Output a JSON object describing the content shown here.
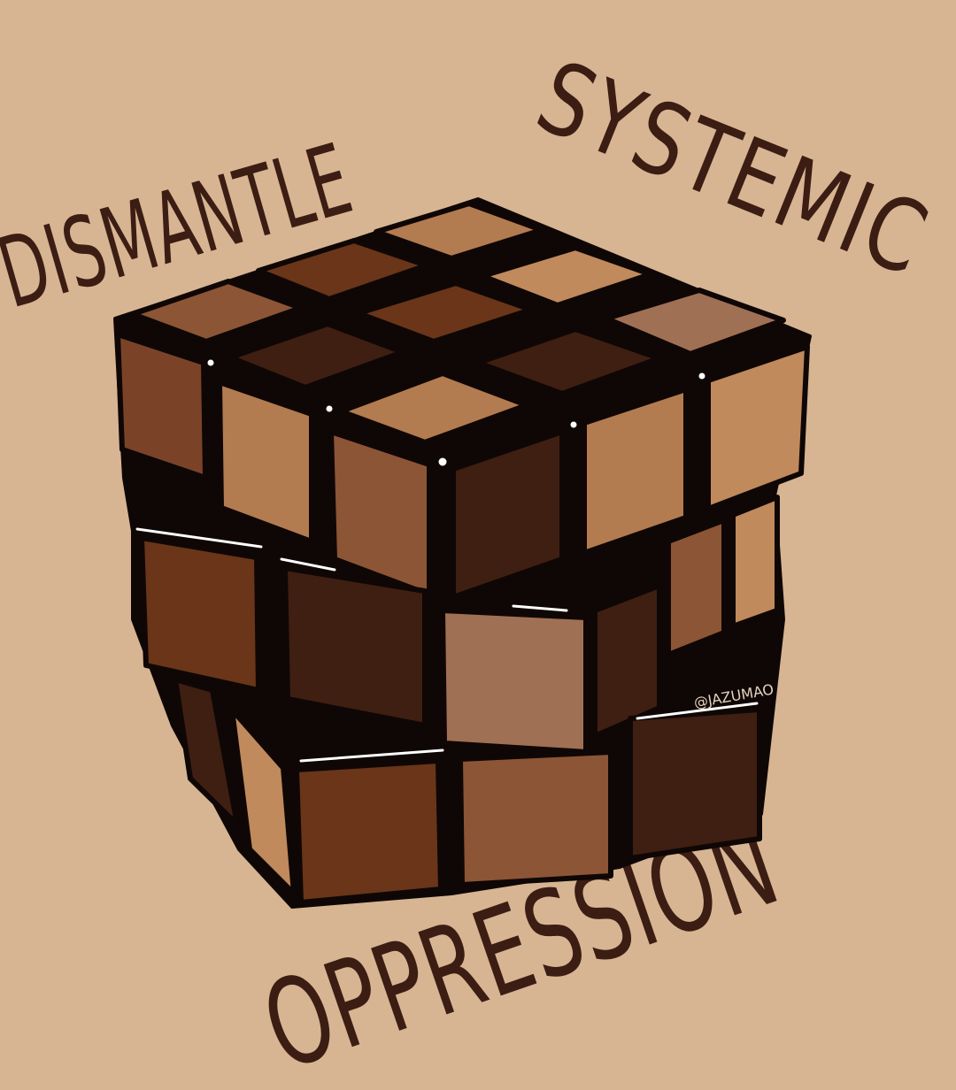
{
  "headline": {
    "line1_word1": "DISMANTLE",
    "line1_word2": "SYSTEMIC",
    "line2": "OPPRESSION"
  },
  "credit": "@JAZUMAO",
  "colors": {
    "background": "#d7b592",
    "lettering": "#3b1d14",
    "outline": "#0f0706",
    "tones": [
      "#c08a5c",
      "#b37b50",
      "#a07055",
      "#8c5535",
      "#7a4328",
      "#6a3518",
      "#5a2c18",
      "#3f1f12",
      "#2f170d"
    ]
  },
  "image": {
    "subject": "rubiks-cube-in-skin-tones"
  }
}
